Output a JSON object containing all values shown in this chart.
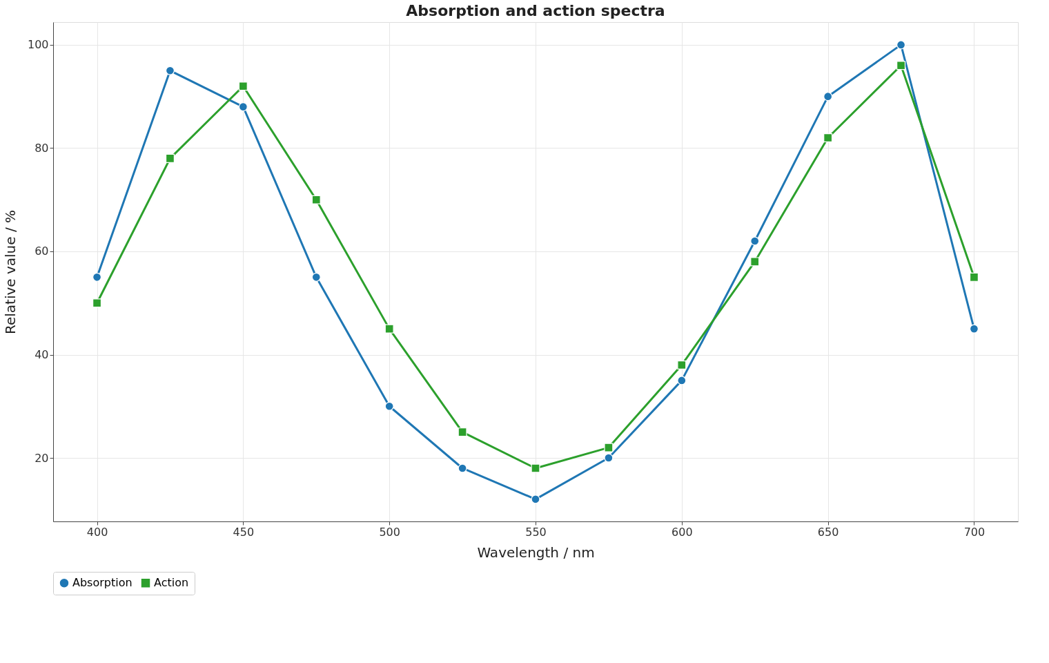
{
  "chart_data": {
    "type": "line",
    "title": "Absorption and action spectra",
    "xlabel": "Wavelength / nm",
    "ylabel": "Relative value / %",
    "x": [
      400,
      425,
      450,
      475,
      500,
      525,
      550,
      575,
      600,
      625,
      650,
      675,
      700
    ],
    "series": [
      {
        "name": "Absorption",
        "color": "#1f77b4",
        "marker": "circle",
        "values": [
          55,
          95,
          88,
          55,
          30,
          18,
          12,
          20,
          35,
          62,
          90,
          100,
          45
        ]
      },
      {
        "name": "Action",
        "color": "#2ca02c",
        "marker": "square",
        "values": [
          50,
          78,
          92,
          70,
          45,
          25,
          18,
          22,
          38,
          58,
          82,
          96,
          55
        ]
      }
    ],
    "xlim": [
      385,
      715
    ],
    "ylim": [
      7.7,
      104.4
    ],
    "xticks": [
      400,
      450,
      500,
      550,
      600,
      650,
      700
    ],
    "yticks": [
      20,
      40,
      60,
      80,
      100
    ],
    "grid": true,
    "legend": "bottom",
    "line_style": "solid"
  }
}
